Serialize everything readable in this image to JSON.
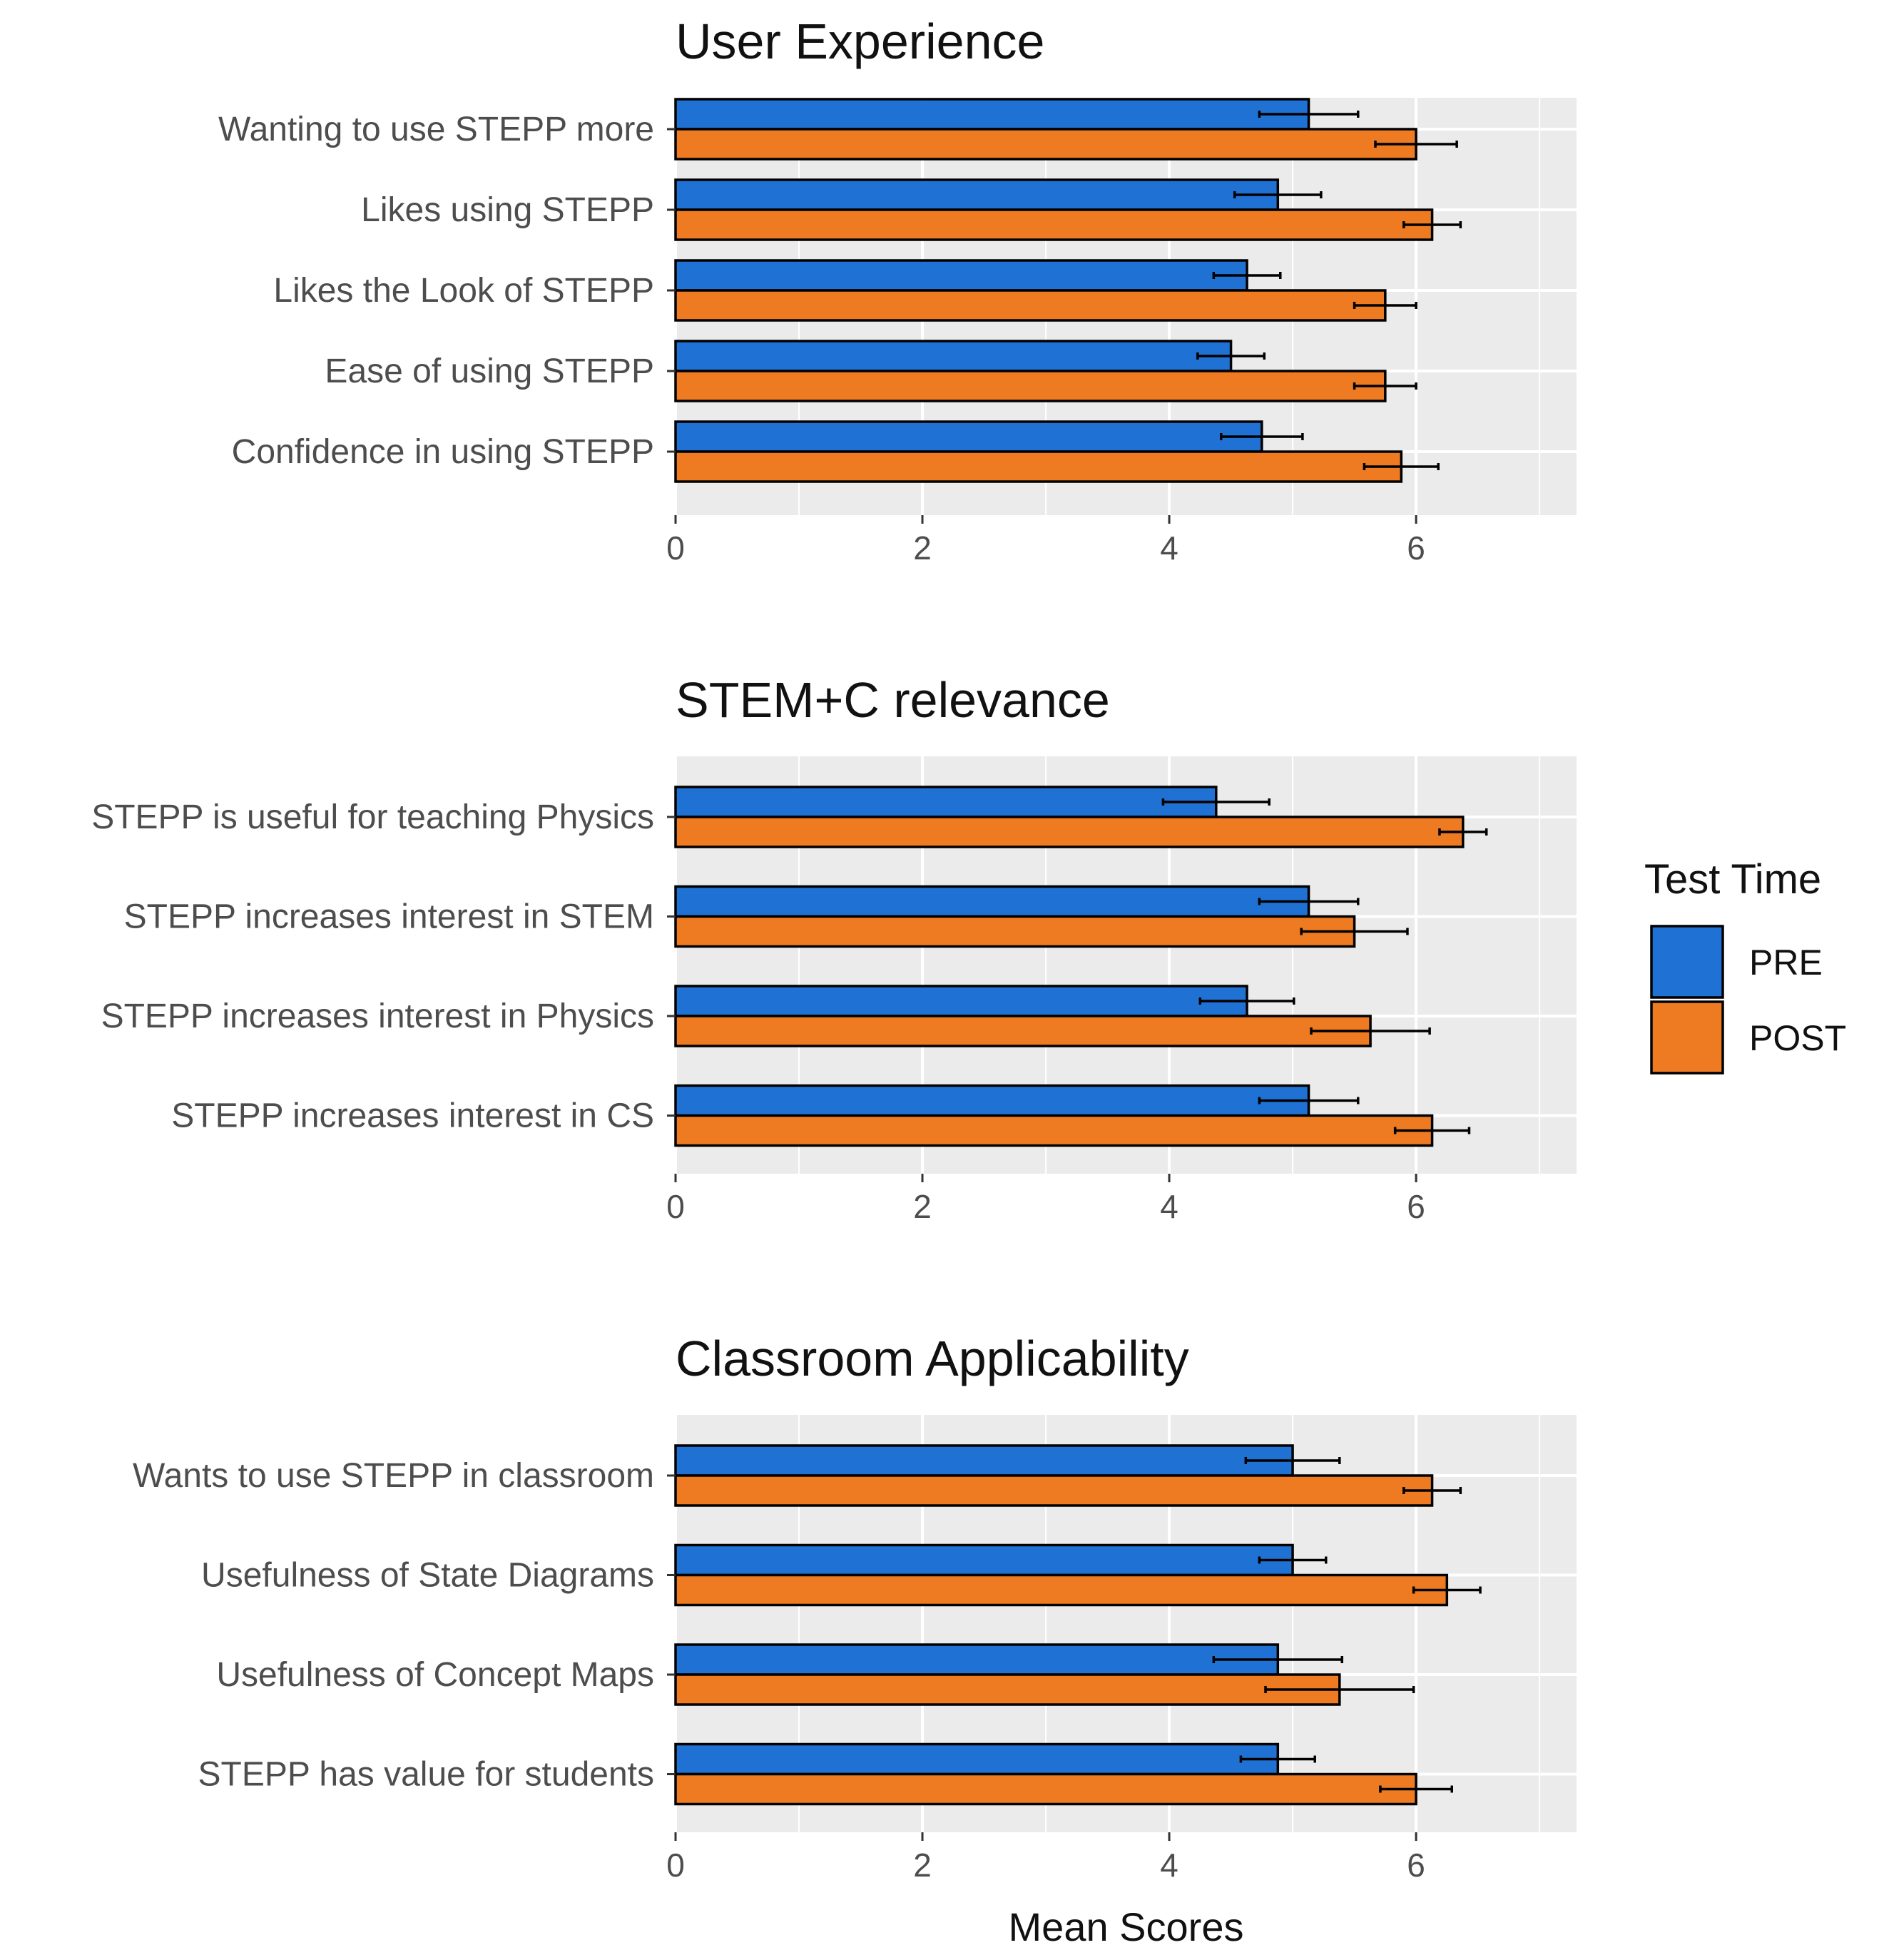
{
  "chart_data": [
    {
      "type": "bar",
      "orientation": "horizontal",
      "title": "User Experience",
      "categories": [
        "Wanting to use STEPP more",
        "Likes using STEPP",
        "Likes the Look of STEPP",
        "Ease of using STEPP",
        "Confidence in using STEPP"
      ],
      "series": [
        {
          "name": "PRE",
          "values": [
            5.13,
            4.88,
            4.63,
            4.5,
            4.75
          ],
          "error": [
            0.4,
            0.35,
            0.27,
            0.27,
            0.33
          ]
        },
        {
          "name": "POST",
          "values": [
            6.0,
            6.13,
            5.75,
            5.75,
            5.88
          ],
          "error": [
            0.33,
            0.23,
            0.25,
            0.25,
            0.3
          ]
        }
      ],
      "xlim": [
        0,
        7.3
      ],
      "xticks": [
        0,
        2,
        4,
        6
      ],
      "xlabel": "",
      "grid": true
    },
    {
      "type": "bar",
      "orientation": "horizontal",
      "title": "STEM+C relevance",
      "categories": [
        "STEPP is useful for teaching Physics",
        "STEPP increases interest in STEM",
        "STEPP increases interest in Physics",
        "STEPP increases interest in CS"
      ],
      "series": [
        {
          "name": "PRE",
          "values": [
            4.38,
            5.13,
            4.63,
            5.13
          ],
          "error": [
            0.43,
            0.4,
            0.38,
            0.4
          ]
        },
        {
          "name": "POST",
          "values": [
            6.38,
            5.5,
            5.63,
            6.13
          ],
          "error": [
            0.19,
            0.43,
            0.48,
            0.3
          ]
        }
      ],
      "xlim": [
        0,
        7.3
      ],
      "xticks": [
        0,
        2,
        4,
        6
      ],
      "xlabel": "",
      "grid": true
    },
    {
      "type": "bar",
      "orientation": "horizontal",
      "title": "Classroom Applicability",
      "categories": [
        "Wants to use STEPP in classroom",
        "Usefulness of State Diagrams",
        "Usefulness of Concept Maps",
        "STEPP has value for students"
      ],
      "series": [
        {
          "name": "PRE",
          "values": [
            5.0,
            5.0,
            4.88,
            4.88
          ],
          "error": [
            0.38,
            0.27,
            0.52,
            0.3
          ]
        },
        {
          "name": "POST",
          "values": [
            6.13,
            6.25,
            5.38,
            6.0
          ],
          "error": [
            0.23,
            0.27,
            0.6,
            0.29
          ]
        }
      ],
      "xlim": [
        0,
        7.3
      ],
      "xticks": [
        0,
        2,
        4,
        6
      ],
      "xlabel": "Mean Scores",
      "grid": true
    }
  ],
  "legend": {
    "title": "Test Time",
    "placement": "right",
    "items": [
      {
        "label": "PRE",
        "color": "#1F72D4"
      },
      {
        "label": "POST",
        "color": "#EE7A22"
      }
    ]
  },
  "colors": {
    "panel_background": "#EBEBEB",
    "gridline": "#FFFFFF",
    "bar_outline": "#000000"
  }
}
